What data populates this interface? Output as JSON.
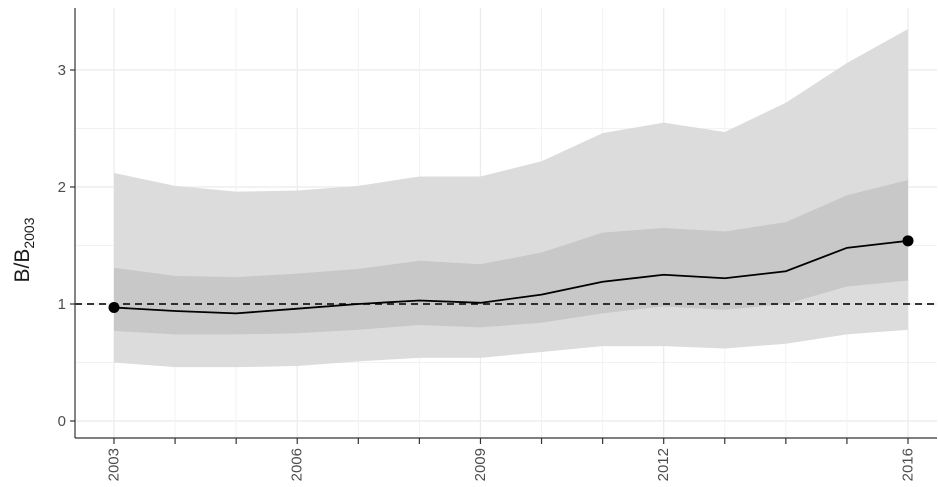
{
  "chart_data": {
    "type": "line",
    "ylabel": {
      "main": "B/B",
      "sub": "2003"
    },
    "xlim": [
      2003,
      2016
    ],
    "ylim": [
      0,
      3.4
    ],
    "x_ticks": [
      2003,
      2006,
      2009,
      2012,
      2016
    ],
    "y_ticks": [
      0,
      1,
      2,
      3
    ],
    "reference_line": 1,
    "grid": true,
    "years": [
      2003,
      2004,
      2005,
      2006,
      2007,
      2008,
      2009,
      2010,
      2011,
      2012,
      2013,
      2014,
      2015,
      2016
    ],
    "series": [
      {
        "values": [
          0.97,
          0.94,
          0.92,
          0.96,
          1.0,
          1.03,
          1.01,
          1.08,
          1.19,
          1.25,
          1.22,
          1.28,
          1.48,
          1.54
        ],
        "color": "#000000"
      }
    ],
    "bands": [
      {
        "lower": [
          0.5,
          0.46,
          0.46,
          0.47,
          0.51,
          0.54,
          0.54,
          0.59,
          0.64,
          0.64,
          0.62,
          0.66,
          0.74,
          0.78
        ],
        "upper": [
          2.12,
          2.01,
          1.96,
          1.97,
          2.01,
          2.09,
          2.09,
          2.22,
          2.46,
          2.55,
          2.47,
          2.72,
          3.06,
          3.35
        ],
        "color": "#dcdcdc"
      },
      {
        "lower": [
          0.77,
          0.74,
          0.74,
          0.75,
          0.78,
          0.82,
          0.8,
          0.84,
          0.92,
          0.98,
          0.95,
          1.0,
          1.15,
          1.2
        ],
        "upper": [
          1.31,
          1.24,
          1.23,
          1.26,
          1.3,
          1.37,
          1.34,
          1.44,
          1.61,
          1.65,
          1.62,
          1.7,
          1.93,
          2.06
        ],
        "color": "#c8c8c8"
      }
    ],
    "endpoints": [
      {
        "x": 2003,
        "y": 0.97
      },
      {
        "x": 2016,
        "y": 1.54
      }
    ]
  }
}
